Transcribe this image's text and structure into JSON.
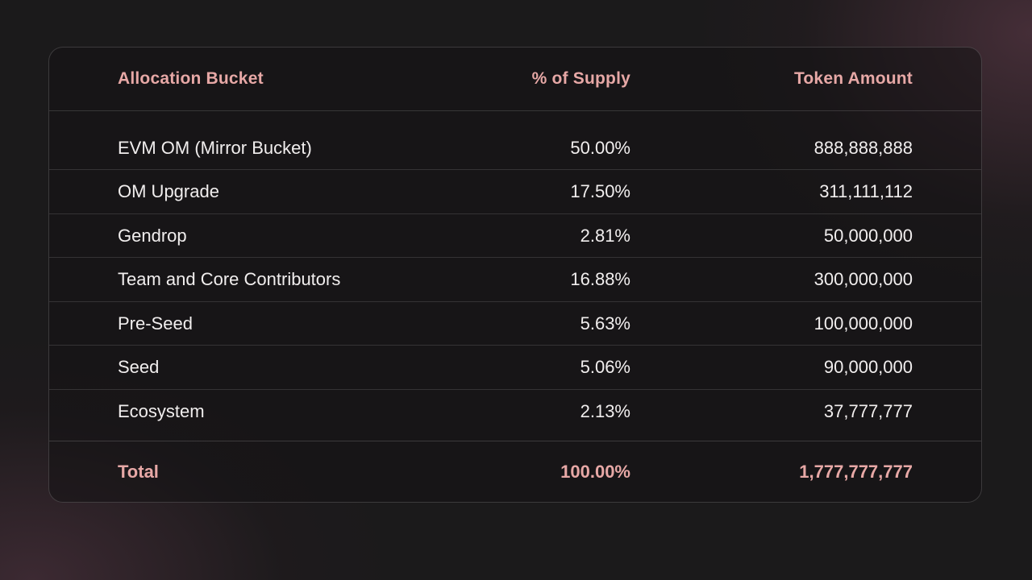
{
  "table": {
    "headers": {
      "bucket": "Allocation Bucket",
      "supply": "% of Supply",
      "amount": "Token Amount"
    },
    "rows": [
      {
        "bucket": "EVM OM (Mirror Bucket)",
        "supply": "50.00%",
        "amount": "888,888,888"
      },
      {
        "bucket": "OM Upgrade",
        "supply": "17.50%",
        "amount": "311,111,112"
      },
      {
        "bucket": "Gendrop",
        "supply": "2.81%",
        "amount": "50,000,000"
      },
      {
        "bucket": "Team and Core Contributors",
        "supply": "16.88%",
        "amount": "300,000,000"
      },
      {
        "bucket": "Pre-Seed",
        "supply": "5.63%",
        "amount": "100,000,000"
      },
      {
        "bucket": "Seed",
        "supply": "5.06%",
        "amount": "90,000,000"
      },
      {
        "bucket": "Ecosystem",
        "supply": "2.13%",
        "amount": "37,777,777"
      }
    ],
    "total": {
      "bucket": "Total",
      "supply": "100.00%",
      "amount": "1,777,777,777"
    }
  },
  "colors": {
    "accent": "#e7a8a6",
    "text": "#f1eeee",
    "background": "#1b1a1b"
  }
}
